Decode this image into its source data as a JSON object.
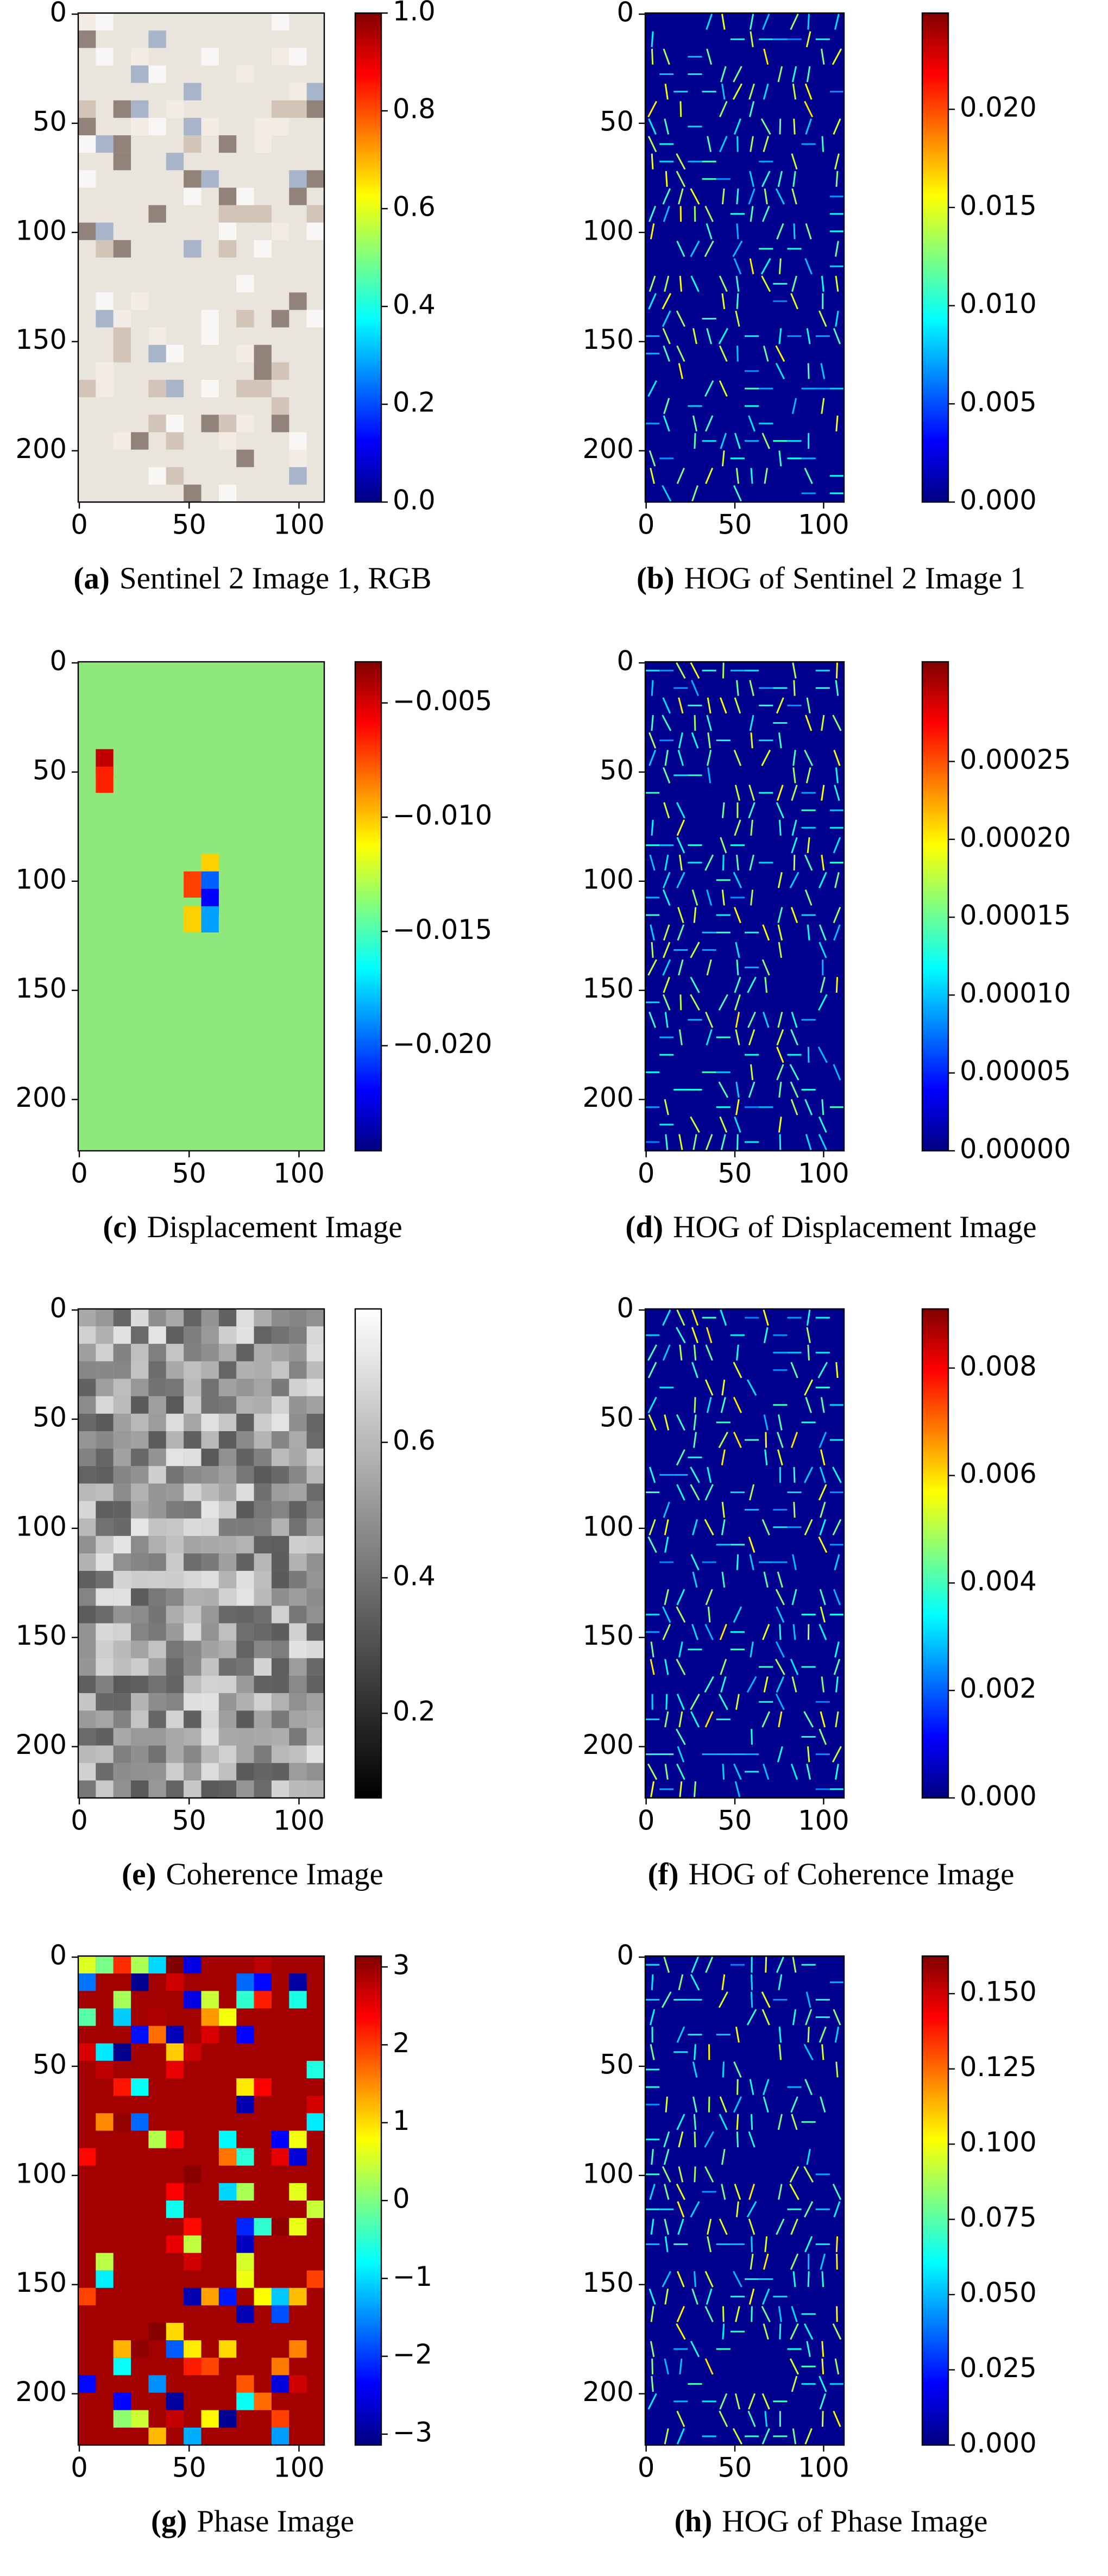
{
  "panels": [
    {
      "label": "(a)",
      "caption": "Sentinel 2 Image 1, RGB",
      "colormap": "jet",
      "xlim": [
        -0.5,
        111.5
      ],
      "ylim": [
        223.5,
        -0.5
      ],
      "xticks": [
        0,
        50,
        100
      ],
      "yticks": [
        0,
        50,
        100,
        150,
        200
      ],
      "clim": [
        0,
        1
      ],
      "cticks": [
        {
          "value": 0,
          "label": "0.0"
        },
        {
          "value": 0.2,
          "label": "0.2"
        },
        {
          "value": 0.4,
          "label": "0.4"
        },
        {
          "value": 0.6,
          "label": "0.6"
        },
        {
          "value": 0.8,
          "label": "0.8"
        },
        {
          "value": 1,
          "label": "1.0"
        }
      ]
    },
    {
      "label": "(b)",
      "caption": "HOG of Sentinel 2 Image 1",
      "colormap": "jet",
      "xlim": [
        -0.5,
        111.5
      ],
      "ylim": [
        223.5,
        -0.5
      ],
      "xticks": [
        0,
        50,
        100
      ],
      "yticks": [
        0,
        50,
        100,
        150,
        200
      ],
      "clim": [
        0,
        0.0249
      ],
      "cticks": [
        {
          "value": 0,
          "label": "0.000"
        },
        {
          "value": 0.005,
          "label": "0.005"
        },
        {
          "value": 0.01,
          "label": "0.010"
        },
        {
          "value": 0.015,
          "label": "0.015"
        },
        {
          "value": 0.02,
          "label": "0.020"
        }
      ]
    },
    {
      "label": "(c)",
      "caption": "Displacement Image",
      "colormap": "jet",
      "xlim": [
        -0.5,
        111.5
      ],
      "ylim": [
        223.5,
        -0.5
      ],
      "xticks": [
        0,
        50,
        100
      ],
      "yticks": [
        0,
        50,
        100,
        150,
        200
      ],
      "clim": [
        -0.0246,
        -0.0032
      ],
      "cticks": [
        {
          "value": -0.02,
          "label": "−0.020"
        },
        {
          "value": -0.015,
          "label": "−0.015"
        },
        {
          "value": -0.01,
          "label": "−0.010"
        },
        {
          "value": -0.005,
          "label": "−0.005"
        }
      ]
    },
    {
      "label": "(d)",
      "caption": "HOG of Displacement Image",
      "colormap": "jet",
      "xlim": [
        -0.5,
        111.5
      ],
      "ylim": [
        223.5,
        -0.5
      ],
      "xticks": [
        0,
        50,
        100
      ],
      "yticks": [
        0,
        50,
        100,
        150,
        200
      ],
      "clim": [
        0,
        0.000314
      ],
      "cticks": [
        {
          "value": 0,
          "label": "0.00000"
        },
        {
          "value": 5e-05,
          "label": "0.00005"
        },
        {
          "value": 0.0001,
          "label": "0.00010"
        },
        {
          "value": 0.00015,
          "label": "0.00015"
        },
        {
          "value": 0.0002,
          "label": "0.00020"
        },
        {
          "value": 0.00025,
          "label": "0.00025"
        }
      ]
    },
    {
      "label": "(e)",
      "caption": "Coherence Image",
      "colormap": "gray",
      "xlim": [
        -0.5,
        111.5
      ],
      "ylim": [
        223.5,
        -0.5
      ],
      "xticks": [
        0,
        50,
        100
      ],
      "yticks": [
        0,
        50,
        100,
        150,
        200
      ],
      "clim": [
        0.075,
        0.797
      ],
      "cticks": [
        0.2,
        0.4,
        0.6
      ]
    },
    {
      "label": "(f)",
      "caption": "HOG of Coherence Image",
      "colormap": "jet",
      "xlim": [
        -0.5,
        111.5
      ],
      "ylim": [
        223.5,
        -0.5
      ],
      "xticks": [
        0,
        50,
        100
      ],
      "yticks": [
        0,
        50,
        100,
        150,
        200
      ],
      "clim": [
        0,
        0.0091
      ],
      "cticks": [
        {
          "value": 0,
          "label": "0.000"
        },
        {
          "value": 0.002,
          "label": "0.002"
        },
        {
          "value": 0.004,
          "label": "0.004"
        },
        {
          "value": 0.006,
          "label": "0.006"
        },
        {
          "value": 0.008,
          "label": "0.008"
        }
      ]
    },
    {
      "label": "(g)",
      "caption": "Phase Image",
      "colormap": "jet",
      "xlim": [
        -0.5,
        111.5
      ],
      "ylim": [
        223.5,
        -0.5
      ],
      "xticks": [
        0,
        50,
        100
      ],
      "yticks": [
        0,
        50,
        100,
        150,
        200
      ],
      "clim": [
        -3.14,
        3.14
      ],
      "cticks": [
        {
          "value": -3,
          "label": "−3"
        },
        {
          "value": -2,
          "label": "−2"
        },
        {
          "value": -1,
          "label": "−1"
        },
        0,
        1,
        2,
        3
      ]
    },
    {
      "label": "(h)",
      "caption": "HOG of Phase Image",
      "colormap": "jet",
      "xlim": [
        -0.5,
        111.5
      ],
      "ylim": [
        223.5,
        -0.5
      ],
      "xticks": [
        0,
        50,
        100
      ],
      "yticks": [
        0,
        50,
        100,
        150,
        200
      ],
      "clim": [
        0,
        0.1625
      ],
      "cticks": [
        {
          "value": 0,
          "label": "0.000"
        },
        {
          "value": 0.025,
          "label": "0.025"
        },
        {
          "value": 0.05,
          "label": "0.050"
        },
        {
          "value": 0.075,
          "label": "0.075"
        },
        {
          "value": 0.1,
          "label": "0.100"
        },
        {
          "value": 0.125,
          "label": "0.125"
        },
        {
          "value": 0.15,
          "label": "0.150"
        }
      ]
    }
  ]
}
